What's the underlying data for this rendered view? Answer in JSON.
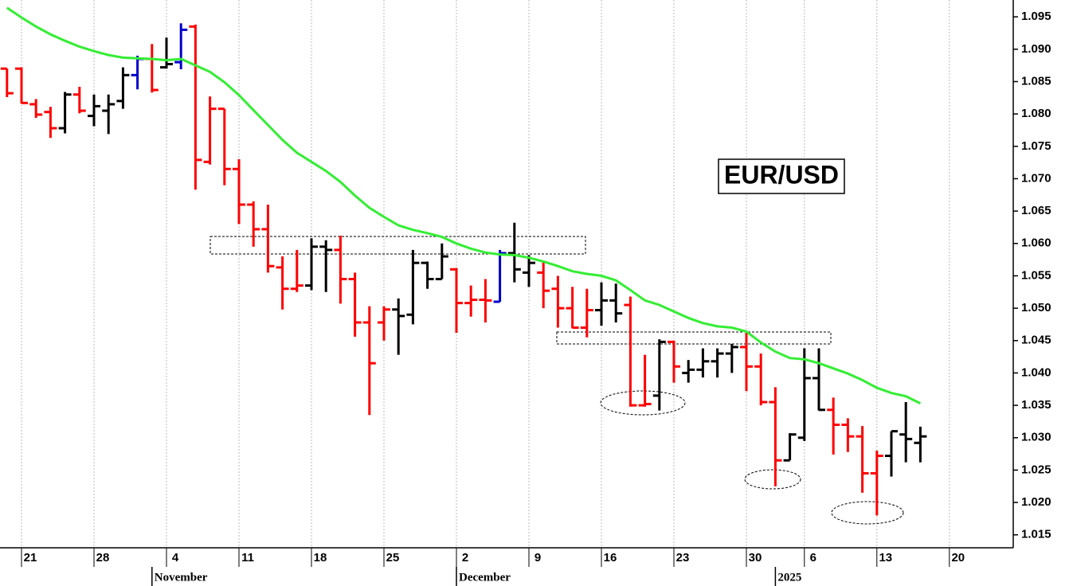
{
  "chart_data": {
    "type": "ohlc",
    "title": "EUR/USD",
    "categories": [
      null,
      "21",
      null,
      null,
      null,
      null,
      "28",
      null,
      null,
      null,
      null,
      "4",
      null,
      null,
      null,
      null,
      "11",
      null,
      null,
      null,
      null,
      "18",
      null,
      null,
      null,
      null,
      "25",
      null,
      null,
      null,
      null,
      "2",
      null,
      null,
      null,
      null,
      "9",
      null,
      null,
      null,
      null,
      "16",
      null,
      null,
      null,
      null,
      "23",
      null,
      null,
      null,
      null,
      "30",
      null,
      null,
      null,
      "6",
      null,
      null,
      null,
      null,
      "13",
      null,
      null,
      null,
      null,
      "20"
    ],
    "months": [
      null,
      null,
      null,
      null,
      null,
      null,
      null,
      null,
      null,
      null,
      "November",
      null,
      null,
      null,
      null,
      null,
      null,
      null,
      null,
      null,
      null,
      null,
      null,
      null,
      null,
      null,
      null,
      null,
      null,
      null,
      null,
      "December",
      null,
      null,
      null,
      null,
      null,
      null,
      null,
      null,
      null,
      null,
      null,
      null,
      null,
      null,
      null,
      null,
      null,
      null,
      null,
      null,
      null,
      "2025",
      null,
      null,
      null,
      null,
      null,
      null,
      null,
      null,
      null,
      null,
      null,
      null
    ],
    "open": [
      1.087,
      1.087,
      1.0815,
      1.0803,
      1.0778,
      1.083,
      1.0797,
      1.0805,
      1.082,
      1.086,
      1.0885,
      1.0872,
      1.088,
      1.0935,
      1.0726,
      1.0808,
      1.0715,
      1.066,
      1.0622,
      1.0563,
      1.053,
      1.0535,
      1.0595,
      1.059,
      1.0545,
      1.0478,
      1.0478,
      1.0498,
      1.049,
      1.057,
      1.0545,
      1.056,
      1.0508,
      1.0513,
      1.051,
      1.0585,
      1.0555,
      1.0555,
      1.053,
      1.05,
      1.047,
      1.0497,
      1.0512,
      1.0505,
      1.035,
      1.0365,
      1.0448,
      1.04,
      1.0405,
      1.0418,
      1.043,
      1.044,
      1.041,
      1.0355,
      1.0265,
      1.03,
      1.0392,
      1.0343,
      1.032,
      1.0302,
      1.0245,
      1.0272,
      1.0305,
      1.0292,
      null,
      null
    ],
    "high": [
      1.087,
      1.0872,
      1.0823,
      1.0811,
      1.0834,
      1.0842,
      1.083,
      1.083,
      1.0872,
      1.089,
      1.0908,
      1.0918,
      1.094,
      1.0938,
      1.0827,
      1.0808,
      1.073,
      1.0665,
      1.066,
      1.058,
      1.059,
      1.0608,
      1.0605,
      1.0612,
      1.0555,
      1.0503,
      1.0503,
      1.0515,
      1.059,
      1.0572,
      1.06,
      1.0562,
      1.0535,
      1.0545,
      1.059,
      1.0632,
      1.0582,
      1.0572,
      1.055,
      1.0533,
      1.053,
      1.054,
      1.0538,
      1.0518,
      1.0428,
      1.0452,
      1.045,
      1.042,
      1.0438,
      1.0438,
      1.0445,
      1.0462,
      1.043,
      1.0378,
      1.0307,
      1.0438,
      1.0438,
      1.0362,
      1.033,
      1.0318,
      1.028,
      1.031,
      1.0355,
      1.0317,
      null,
      null
    ],
    "low": [
      1.0826,
      1.0816,
      1.0794,
      1.0763,
      1.077,
      1.0801,
      1.0781,
      1.0769,
      1.0808,
      1.0838,
      1.0833,
      1.087,
      1.0869,
      1.0683,
      1.0722,
      1.069,
      1.063,
      1.0595,
      1.0555,
      1.0498,
      1.0525,
      1.0528,
      1.0525,
      1.0507,
      1.0456,
      1.0335,
      1.045,
      1.0428,
      1.0475,
      1.053,
      1.0545,
      1.0462,
      1.0487,
      1.0478,
      1.051,
      1.054,
      1.0533,
      1.05,
      1.047,
      1.0469,
      1.0455,
      1.0473,
      1.0478,
      1.0348,
      1.0348,
      1.0342,
      1.0385,
      1.0385,
      1.0393,
      1.0393,
      1.04,
      1.0372,
      1.035,
      1.0225,
      1.0265,
      1.0295,
      1.0342,
      1.0274,
      1.0278,
      1.0215,
      1.018,
      1.024,
      1.0262,
      1.0262,
      null,
      null
    ],
    "close": [
      1.0832,
      1.0817,
      1.0799,
      1.0778,
      1.083,
      1.0805,
      1.0812,
      1.0815,
      1.086,
      1.0885,
      1.0837,
      1.0877,
      1.093,
      1.0729,
      1.0808,
      1.0715,
      1.066,
      1.0622,
      1.0565,
      1.053,
      1.0535,
      1.0595,
      1.059,
      1.0545,
      1.0478,
      1.0415,
      1.0498,
      1.0488,
      1.057,
      1.0545,
      1.058,
      1.0508,
      1.0513,
      1.0512,
      1.0585,
      1.056,
      1.057,
      1.0527,
      1.05,
      1.047,
      1.0497,
      1.0512,
      1.0492,
      1.035,
      1.0352,
      1.0448,
      1.041,
      1.0405,
      1.0418,
      1.043,
      1.044,
      1.041,
      1.0355,
      1.0265,
      1.0305,
      1.0392,
      1.0343,
      1.032,
      1.0302,
      1.0245,
      1.0272,
      1.031,
      1.0298,
      1.0302,
      null,
      null
    ],
    "colors": [
      "#ff0000",
      "#ff0000",
      "#ff0000",
      "#ff0000",
      "#000000",
      "#ff0000",
      "#000000",
      "#000000",
      "#000000",
      "#0000cc",
      "#ff0000",
      "#000000",
      "#0000cc",
      "#ff0000",
      "#ff0000",
      "#ff0000",
      "#ff0000",
      "#ff0000",
      "#ff0000",
      "#ff0000",
      "#ff0000",
      "#000000",
      "#000000",
      "#ff0000",
      "#ff0000",
      "#ff0000",
      "#ff0000",
      "#000000",
      "#000000",
      "#000000",
      "#000000",
      "#ff0000",
      "#ff0000",
      "#ff0000",
      "#0000cc",
      "#000000",
      "#000000",
      "#ff0000",
      "#ff0000",
      "#ff0000",
      "#ff0000",
      "#000000",
      "#000000",
      "#ff0000",
      "#ff0000",
      "#000000",
      "#ff0000",
      "#000000",
      "#000000",
      "#000000",
      "#000000",
      "#ff0000",
      "#ff0000",
      "#ff0000",
      "#000000",
      "#000000",
      "#000000",
      "#ff0000",
      "#ff0000",
      "#ff0000",
      "#ff0000",
      "#000000",
      "#000000",
      "#000000",
      null,
      null
    ],
    "overlay": {
      "color": "#33ee33",
      "values": [
        1.0964,
        1.0949,
        1.0935,
        1.0923,
        1.0913,
        1.0904,
        1.0897,
        1.0891,
        1.0887,
        1.0886,
        1.0885,
        1.0883,
        1.0885,
        1.0875,
        1.0865,
        1.0849,
        1.0829,
        1.0806,
        1.0783,
        1.076,
        1.074,
        1.0726,
        1.0712,
        1.0695,
        1.0674,
        1.0655,
        1.0641,
        1.0628,
        1.0621,
        1.0616,
        1.061,
        1.06,
        1.0592,
        1.0586,
        1.0583,
        1.0582,
        1.0578,
        1.0572,
        1.0565,
        1.0557,
        1.0553,
        1.055,
        1.0543,
        1.0528,
        1.0512,
        1.0505,
        1.0495,
        1.0485,
        1.0477,
        1.0472,
        1.047,
        1.0464,
        1.0447,
        1.0433,
        1.0423,
        1.0421,
        1.0415,
        1.0407,
        1.0399,
        1.0389,
        1.0377,
        1.0369,
        1.0364,
        1.0353,
        null,
        null
      ]
    },
    "ylim": [
      1.013,
      1.0976
    ],
    "yticks": [
      1.015,
      {
        "value": 1.02,
        "label": "1.020"
      },
      1.025,
      {
        "value": 1.03,
        "label": "1.030"
      },
      1.035,
      {
        "value": 1.04,
        "label": "1.040"
      },
      1.045,
      {
        "value": 1.05,
        "label": "1.050"
      },
      1.055,
      {
        "value": 1.06,
        "label": "1.060"
      },
      1.065,
      {
        "value": 1.07,
        "label": "1.070"
      },
      1.075,
      {
        "value": 1.08,
        "label": "1.080"
      },
      1.085,
      {
        "value": 1.09,
        "label": "1.090"
      },
      1.095
    ],
    "grid": true
  }
}
